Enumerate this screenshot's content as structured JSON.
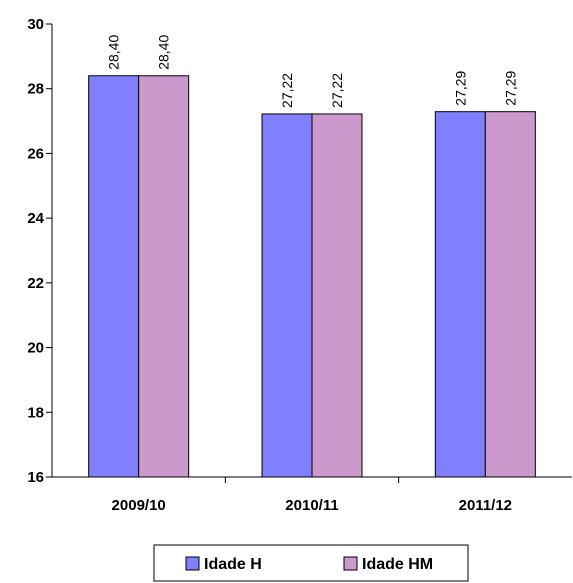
{
  "chart_data": {
    "type": "bar",
    "categories": [
      "2009/10",
      "2010/11",
      "2011/12"
    ],
    "series": [
      {
        "name": "Idade H",
        "values": [
          28.4,
          27.22,
          27.29
        ],
        "labels": [
          "28,40",
          "27,22",
          "27,29"
        ],
        "color": "#8080FF"
      },
      {
        "name": "Idade HM",
        "values": [
          28.4,
          27.22,
          27.29
        ],
        "labels": [
          "28,40",
          "27,22",
          "27,29"
        ],
        "color": "#CC99CC"
      }
    ],
    "title": "",
    "xlabel": "",
    "ylabel": "",
    "ylim": [
      16,
      30
    ],
    "yticks": [
      16,
      18,
      20,
      22,
      24,
      26,
      28,
      30
    ],
    "grid": false,
    "legend_position": "bottom"
  }
}
